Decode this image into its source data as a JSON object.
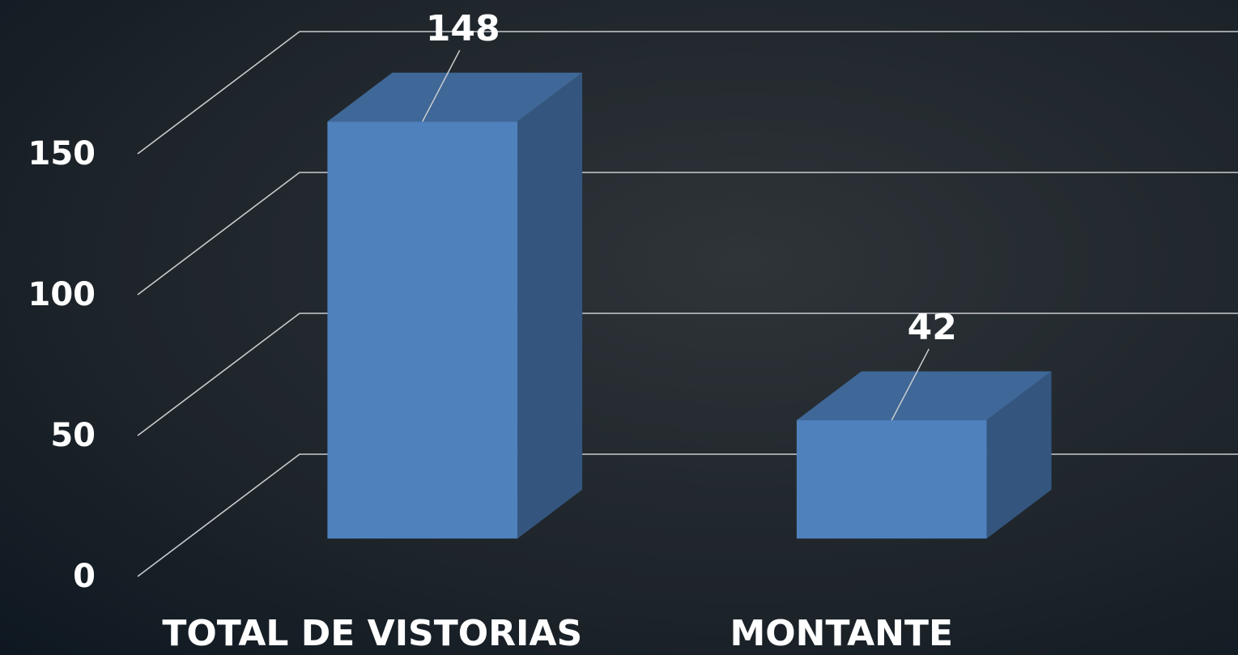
{
  "chart_data": {
    "type": "bar3d",
    "categories": [
      "TOTAL DE VISTORIAS",
      "MONTANTE"
    ],
    "values": [
      148,
      42
    ],
    "color": "#4f81bd",
    "ylim": [
      0,
      150
    ],
    "yticks": [
      0,
      50,
      100,
      150
    ],
    "grid": true
  }
}
